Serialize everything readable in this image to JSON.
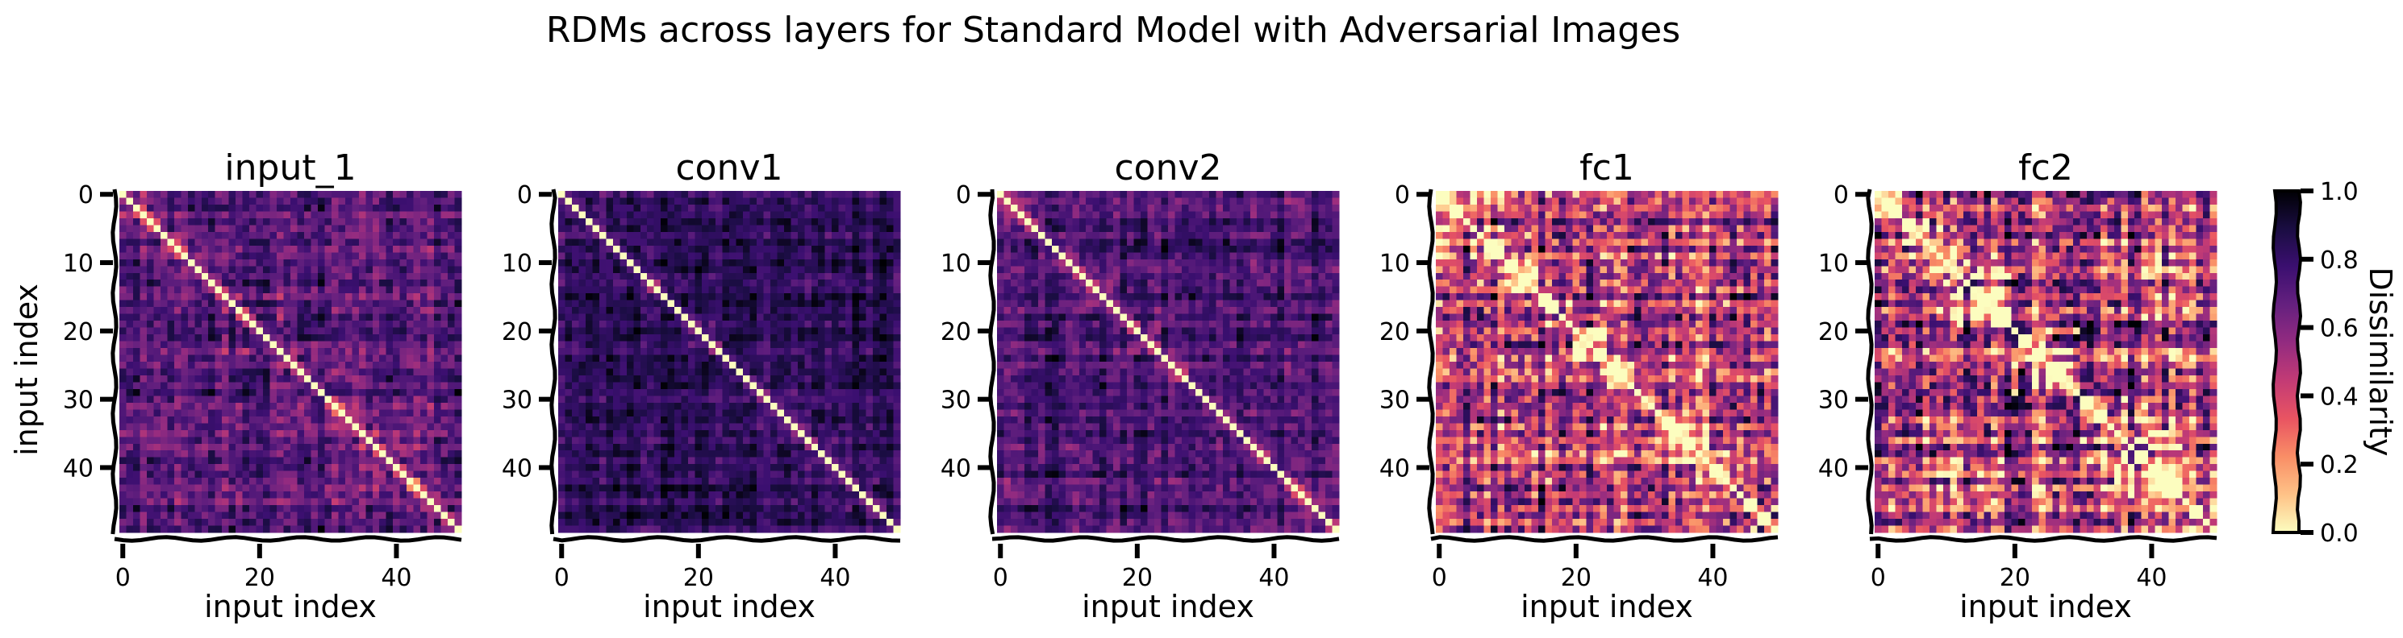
{
  "figure": {
    "suptitle": "RDMs across layers for Standard Model with Adversarial Images"
  },
  "chart_data": {
    "type": "heatmap",
    "n": 50,
    "cmap": "magma_r",
    "colormap_stops": [
      "#fcfdbf",
      "#fec287",
      "#f98e66",
      "#e95462",
      "#c33b75",
      "#932b80",
      "#65207f",
      "#3b0f70",
      "#1a0d42",
      "#000004"
    ],
    "vmin": 0.0,
    "vmax": 1.0,
    "xlabel": "input index",
    "ylabel": "input index",
    "x_ticks": [
      0,
      20,
      40
    ],
    "y_ticks": [
      0,
      10,
      20,
      30,
      40
    ],
    "colorbar": {
      "label": "Dissimilarity",
      "ticks": [
        0.0,
        0.2,
        0.4,
        0.6,
        0.8,
        1.0
      ],
      "tick_labels": [
        "0.0",
        "0.2",
        "0.4",
        "0.6",
        "0.8",
        "1.0"
      ]
    },
    "panels": [
      {
        "title": "input_1",
        "seed": 11,
        "base": 0.72,
        "spread": 0.13,
        "block_strength": 0.1,
        "block_size": 6,
        "stripe": 0.1
      },
      {
        "title": "conv1",
        "seed": 23,
        "base": 0.82,
        "spread": 0.09,
        "block_strength": 0.05,
        "block_size": 6,
        "stripe": 0.06
      },
      {
        "title": "conv2",
        "seed": 37,
        "base": 0.76,
        "spread": 0.11,
        "block_strength": 0.08,
        "block_size": 6,
        "stripe": 0.08
      },
      {
        "title": "fc1",
        "seed": 51,
        "base": 0.52,
        "spread": 0.25,
        "block_strength": 0.35,
        "block_size": 5,
        "stripe": 0.2
      },
      {
        "title": "fc2",
        "seed": 67,
        "base": 0.45,
        "spread": 0.27,
        "block_strength": 0.45,
        "block_size": 5,
        "stripe": 0.22
      }
    ]
  }
}
